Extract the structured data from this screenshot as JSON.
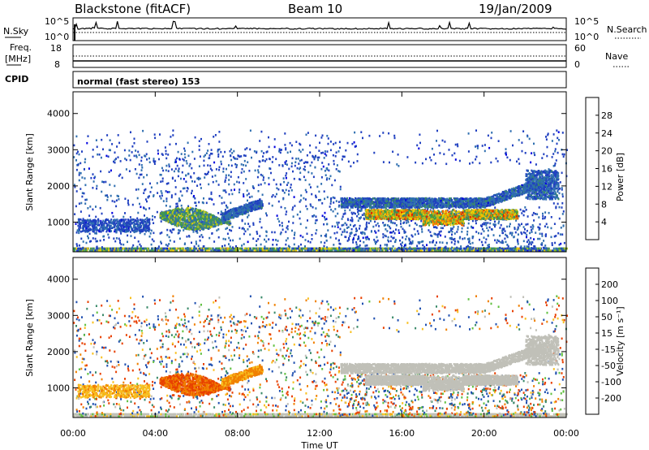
{
  "header": {
    "station": "Blackstone (fitACF)",
    "beam": "Beam 10",
    "date": "19/Jan/2009"
  },
  "sky_panel": {
    "left_label": "N.Sky",
    "right_label": "N.Search",
    "ticks_left": [
      "10^5",
      "10^0"
    ],
    "ticks_right": [
      "10^5",
      "10^0"
    ]
  },
  "freq_panel": {
    "left_label_top": "Freq.",
    "left_label_unit": "[MHz]",
    "right_label": "Nave",
    "ticks_left": [
      "18",
      "8"
    ],
    "ticks_right": [
      "60",
      "0"
    ]
  },
  "cpid": {
    "label": "CPID",
    "text": "normal (fast stereo) 153"
  },
  "chart_data": [
    {
      "type": "heatmap",
      "name": "Power",
      "ylabel": "Slant Range [km]",
      "xlabel": "",
      "ylim": [
        180,
        4600
      ],
      "yticks": [
        "4000",
        "3000",
        "2000",
        "1000"
      ],
      "ytick_values": [
        4000,
        3000,
        2000,
        1000
      ],
      "colorbar": {
        "label": "Power [dB]",
        "range": [
          0,
          32
        ],
        "tick_labels": [
          "28",
          "24",
          "20",
          "16",
          "12",
          "8",
          "4"
        ],
        "tick_values": [
          28,
          24,
          20,
          16,
          12,
          8,
          4
        ],
        "colors": [
          "#0000e0",
          "#2040c0",
          "#2f6fb0",
          "#3a8a6a",
          "#40a040",
          "#a8c020",
          "#f0d000",
          "#f8a800",
          "#f07000",
          "#e02000"
        ]
      },
      "regions": [
        {
          "t": [
            0.0,
            24.0
          ],
          "r": [
            180,
            300
          ],
          "desc": "ground scatter band"
        },
        {
          "t": [
            4.5,
            7.5
          ],
          "r": [
            700,
            1400
          ],
          "desc": "patch 04-08 UT"
        },
        {
          "t": [
            13.0,
            23.5
          ],
          "r": [
            1300,
            1700
          ],
          "desc": "band 13-24 UT"
        },
        {
          "t": [
            14.5,
            21.5
          ],
          "r": [
            850,
            1300
          ],
          "desc": "high-power band"
        }
      ]
    },
    {
      "type": "heatmap",
      "name": "Velocity",
      "xlabel": "Time UT",
      "ylabel": "Slant Range [km]",
      "ylim": [
        180,
        4600
      ],
      "yticks": [
        "4000",
        "3000",
        "2000",
        "1000"
      ],
      "ytick_values": [
        4000,
        3000,
        2000,
        1000
      ],
      "xticks": [
        "00:00",
        "04:00",
        "08:00",
        "12:00",
        "16:00",
        "20:00",
        "00:00"
      ],
      "xtick_values": [
        0,
        4,
        8,
        12,
        16,
        20,
        24
      ],
      "colorbar": {
        "label": "Velocity [m s⁻¹]",
        "tick_labels": [
          "200",
          "100",
          "50",
          "15",
          "-15",
          "-50",
          "-100",
          "-200"
        ],
        "tick_values": [
          200,
          100,
          50,
          15,
          -15,
          -50,
          -100,
          -200
        ],
        "colors": [
          "#1020c0",
          "#2050b0",
          "#3a8a6a",
          "#60c040",
          "#c0c0b8",
          "#f8c020",
          "#f08000",
          "#e84000",
          "#d80000"
        ]
      }
    }
  ]
}
